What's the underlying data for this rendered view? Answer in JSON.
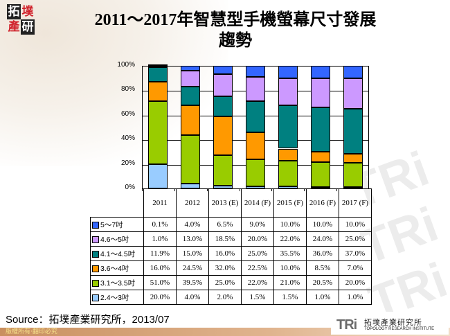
{
  "header": {
    "logo_chars": [
      "拓",
      "墣",
      "產",
      "研"
    ],
    "title_line1": "2011～2017年智慧型手機螢幕尺寸發展",
    "title_line2": "趨勢"
  },
  "chart_data": {
    "type": "bar",
    "stacked": true,
    "title": "2011～2017年智慧型手機螢幕尺寸發展趨勢",
    "xlabel": "",
    "ylabel": "",
    "ylim": [
      0,
      100
    ],
    "y_ticks": [
      "100%",
      "80%",
      "60%",
      "40%",
      "20%",
      "0%"
    ],
    "grid": true,
    "legend_position": "data-table",
    "categories": [
      "2011",
      "2012",
      "2013 (E)",
      "2014 (F)",
      "2015 (F)",
      "2016 (F)",
      "2017 (F)"
    ],
    "series": [
      {
        "name": "2.4～3吋",
        "color": "#99ccff",
        "values": [
          20.0,
          4.0,
          2.0,
          1.5,
          1.5,
          1.0,
          1.0
        ]
      },
      {
        "name": "3.1～3.5吋",
        "color": "#99cc00",
        "values": [
          51.0,
          39.5,
          25.0,
          22.0,
          21.0,
          20.5,
          20.0
        ]
      },
      {
        "name": "3.6～4吋",
        "color": "#ff9900",
        "values": [
          16.0,
          24.5,
          32.0,
          22.5,
          10.0,
          8.5,
          7.0
        ]
      },
      {
        "name": "4.1～4.5吋",
        "color": "#008080",
        "values": [
          11.9,
          15.0,
          16.0,
          25.0,
          35.5,
          36.0,
          37.0
        ]
      },
      {
        "name": "4.6～5吋",
        "color": "#cc99ff",
        "values": [
          1.0,
          13.0,
          18.5,
          20.0,
          22.0,
          24.0,
          25.0
        ]
      },
      {
        "name": "5～7吋",
        "color": "#3366ff",
        "values": [
          0.1,
          4.0,
          6.5,
          9.0,
          10.0,
          10.0,
          10.0
        ]
      }
    ]
  },
  "table": {
    "columns": [
      "2011",
      "2012",
      "2013 (E)",
      "2014 (F)",
      "2015 (F)",
      "2016 (F)",
      "2017 (F)"
    ],
    "rows": [
      {
        "label": "5～7吋",
        "color": "#3366ff",
        "cells": [
          "0.1%",
          "4.0%",
          "6.5%",
          "9.0%",
          "10.0%",
          "10.0%",
          "10.0%"
        ]
      },
      {
        "label": "4.6～5吋",
        "color": "#cc99ff",
        "cells": [
          "1.0%",
          "13.0%",
          "18.5%",
          "20.0%",
          "22.0%",
          "24.0%",
          "25.0%"
        ]
      },
      {
        "label": "4.1～4.5吋",
        "color": "#008080",
        "cells": [
          "11.9%",
          "15.0%",
          "16.0%",
          "25.0%",
          "35.5%",
          "36.0%",
          "37.0%"
        ]
      },
      {
        "label": "3.6～4吋",
        "color": "#ff9900",
        "cells": [
          "16.0%",
          "24.5%",
          "32.0%",
          "22.5%",
          "10.0%",
          "8.5%",
          "7.0%"
        ]
      },
      {
        "label": "3.1～3.5吋",
        "color": "#99cc00",
        "cells": [
          "51.0%",
          "39.5%",
          "25.0%",
          "22.0%",
          "21.0%",
          "20.5%",
          "20.0%"
        ]
      },
      {
        "label": "2.4～3吋",
        "color": "#99ccff",
        "cells": [
          "20.0%",
          "4.0%",
          "2.0%",
          "1.5%",
          "1.5%",
          "1.0%",
          "1.0%"
        ]
      }
    ]
  },
  "source": "Source：拓墣產業研究所，2013/07",
  "footer": {
    "copyright": "版權所有‧翻印必究",
    "brand_mark": "TRi",
    "brand_cn": "拓墣產業研究所",
    "brand_en": "TOPOLOGY RESEARCH INSTITUTE"
  }
}
